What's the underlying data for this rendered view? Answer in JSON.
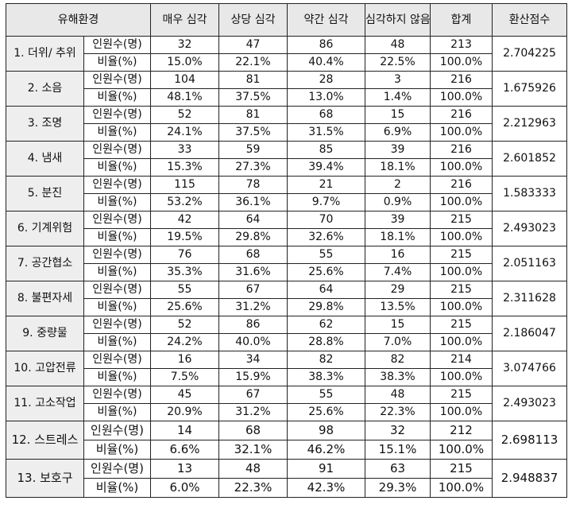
{
  "headers": {
    "env": "유해환경",
    "very": "매우 심각",
    "quite": "상당 심각",
    "slight": "약간 심각",
    "none": "심각하지\n않음",
    "total": "합계",
    "score": "환산점수"
  },
  "row_kinds": {
    "count": "인원수(명)",
    "ratio": "비율(%)"
  },
  "rows": [
    {
      "name": "1. 더위/\n추위",
      "count": [
        "32",
        "47",
        "86",
        "48",
        "213"
      ],
      "ratio": [
        "15.0%",
        "22.1%",
        "40.4%",
        "22.5%",
        "100.0%"
      ],
      "score": "2.704225"
    },
    {
      "name": "2. 소음",
      "count": [
        "104",
        "81",
        "28",
        "3",
        "216"
      ],
      "ratio": [
        "48.1%",
        "37.5%",
        "13.0%",
        "1.4%",
        "100.0%"
      ],
      "score": "1.675926"
    },
    {
      "name": "3. 조명",
      "count": [
        "52",
        "81",
        "68",
        "15",
        "216"
      ],
      "ratio": [
        "24.1%",
        "37.5%",
        "31.5%",
        "6.9%",
        "100.0%"
      ],
      "score": "2.212963"
    },
    {
      "name": "4. 냄새",
      "count": [
        "33",
        "59",
        "85",
        "39",
        "216"
      ],
      "ratio": [
        "15.3%",
        "27.3%",
        "39.4%",
        "18.1%",
        "100.0%"
      ],
      "score": "2.601852"
    },
    {
      "name": "5. 분진",
      "count": [
        "115",
        "78",
        "21",
        "2",
        "216"
      ],
      "ratio": [
        "53.2%",
        "36.1%",
        "9.7%",
        "0.9%",
        "100.0%"
      ],
      "score": "1.583333"
    },
    {
      "name": "6. 기계위험",
      "count": [
        "42",
        "64",
        "70",
        "39",
        "215"
      ],
      "ratio": [
        "19.5%",
        "29.8%",
        "32.6%",
        "18.1%",
        "100.0%"
      ],
      "score": "2.493023"
    },
    {
      "name": "7. 공간협소",
      "count": [
        "76",
        "68",
        "55",
        "16",
        "215"
      ],
      "ratio": [
        "35.3%",
        "31.6%",
        "25.6%",
        "7.4%",
        "100.0%"
      ],
      "score": "2.051163"
    },
    {
      "name": "8. 불편자세",
      "count": [
        "55",
        "67",
        "64",
        "29",
        "215"
      ],
      "ratio": [
        "25.6%",
        "31.2%",
        "29.8%",
        "13.5%",
        "100.0%"
      ],
      "score": "2.311628"
    },
    {
      "name": "9. 중량물",
      "count": [
        "52",
        "86",
        "62",
        "15",
        "215"
      ],
      "ratio": [
        "24.2%",
        "40.0%",
        "28.8%",
        "7.0%",
        "100.0%"
      ],
      "score": "2.186047"
    },
    {
      "name": "10.\n고압전류",
      "count": [
        "16",
        "34",
        "82",
        "82",
        "214"
      ],
      "ratio": [
        "7.5%",
        "15.9%",
        "38.3%",
        "38.3%",
        "100.0%"
      ],
      "score": "3.074766"
    },
    {
      "name": "11.\n고소작업",
      "count": [
        "45",
        "67",
        "55",
        "48",
        "215"
      ],
      "ratio": [
        "20.9%",
        "31.2%",
        "25.6%",
        "22.3%",
        "100.0%"
      ],
      "score": "2.493023"
    },
    {
      "name": "12.\n스트레스",
      "count": [
        "14",
        "68",
        "98",
        "32",
        "212"
      ],
      "ratio": [
        "6.6%",
        "32.1%",
        "46.2%",
        "15.1%",
        "100.0%"
      ],
      "score": "2.698113"
    },
    {
      "name": "13.\n보호구",
      "count": [
        "13",
        "48",
        "91",
        "63",
        "215"
      ],
      "ratio": [
        "6.0%",
        "22.3%",
        "42.3%",
        "29.3%",
        "100.0%"
      ],
      "score": "2.948837"
    }
  ]
}
